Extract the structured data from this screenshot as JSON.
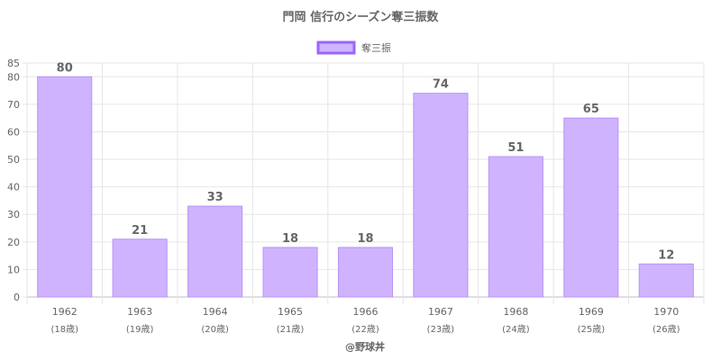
{
  "chart_data": {
    "type": "bar",
    "title": "門岡 信行のシーズン奪三振数",
    "legend": {
      "label": "奪三振",
      "position": "top",
      "color": "#CFB3FF",
      "border_color": "#9966FF"
    },
    "categories": [
      "1962",
      "1963",
      "1964",
      "1965",
      "1966",
      "1967",
      "1968",
      "1969",
      "1970"
    ],
    "category_sublabels": [
      "(18歳)",
      "(19歳)",
      "(20歳)",
      "(21歳)",
      "(22歳)",
      "(23歳)",
      "(24歳)",
      "(25歳)",
      "(26歳)"
    ],
    "values": [
      80,
      21,
      33,
      18,
      18,
      74,
      51,
      65,
      12
    ],
    "ylim": [
      0,
      85
    ],
    "yticks": [
      0,
      10,
      20,
      30,
      40,
      50,
      60,
      70,
      80,
      85
    ],
    "grid": true,
    "bar_color": "#CFB3FF",
    "bar_border_color": "#B794F6",
    "footer": "@野球丼"
  }
}
